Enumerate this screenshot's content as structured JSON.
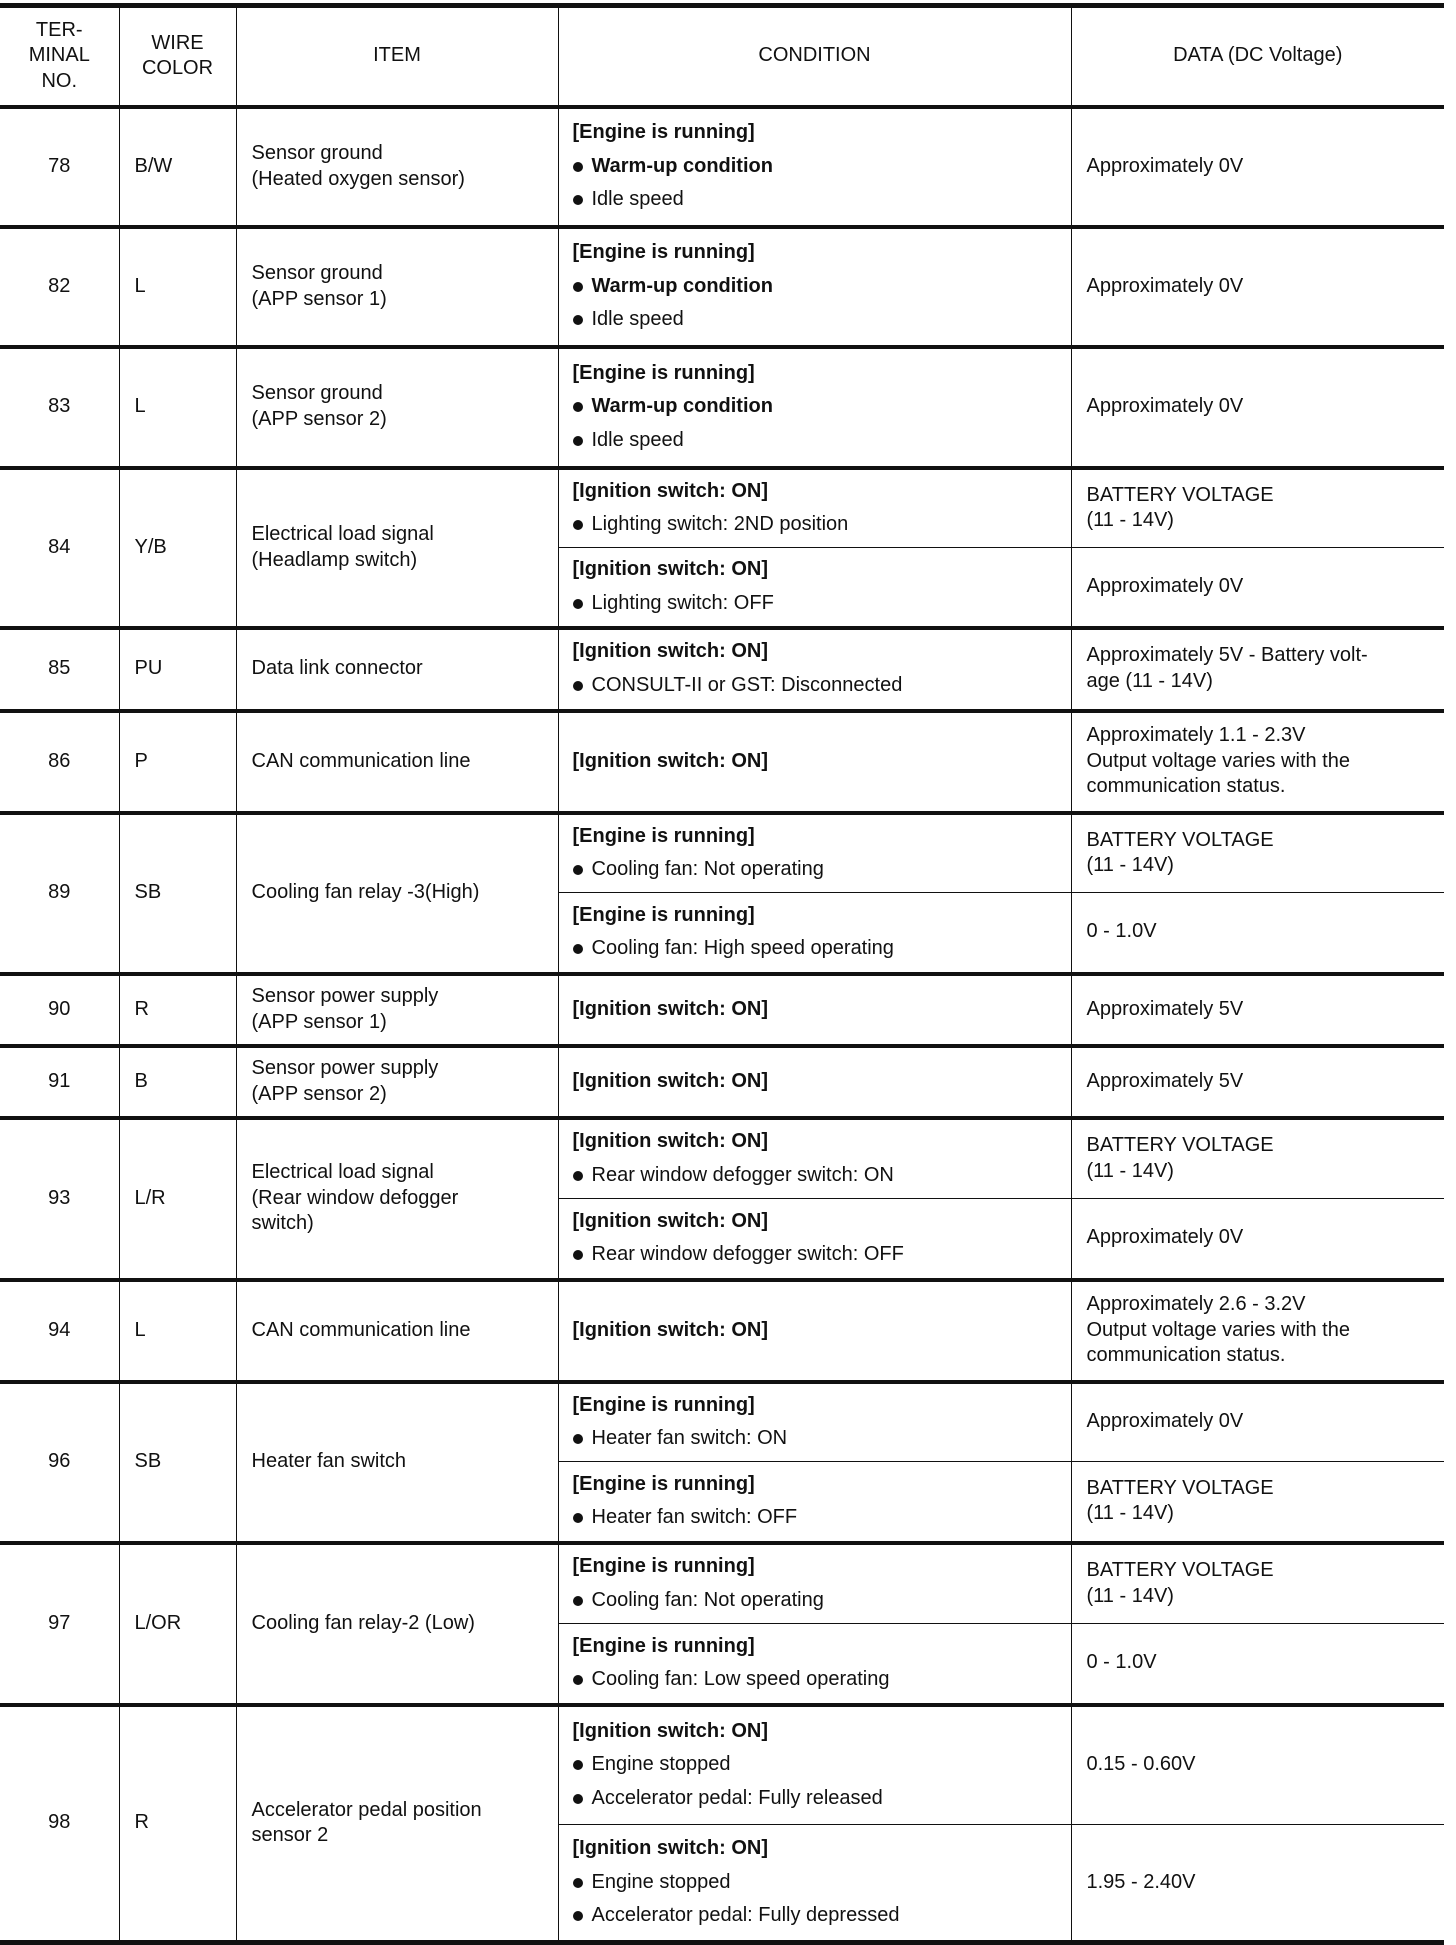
{
  "header": [
    "TER-\nMINAL\nNO.",
    "WIRE\nCOLOR",
    "ITEM",
    "CONDITION",
    "DATA (DC Voltage)"
  ],
  "rows": [
    {
      "terminal": "78",
      "wire": "B/W",
      "item": "Sensor ground\n(Heated oxygen sensor)",
      "conditions": [
        {
          "header": "[Engine is running]",
          "bullets": [
            {
              "text": "Warm-up condition",
              "bold": true
            },
            {
              "text": "Idle speed",
              "bold": false
            }
          ],
          "data": "Approximately 0V"
        }
      ]
    },
    {
      "terminal": "82",
      "wire": "L",
      "item": "Sensor ground\n(APP sensor 1)",
      "conditions": [
        {
          "header": "[Engine is running]",
          "bullets": [
            {
              "text": "Warm-up condition",
              "bold": true
            },
            {
              "text": "Idle speed",
              "bold": false
            }
          ],
          "data": "Approximately 0V"
        }
      ]
    },
    {
      "terminal": "83",
      "wire": "L",
      "item": "Sensor ground\n(APP sensor 2)",
      "conditions": [
        {
          "header": "[Engine is running]",
          "bullets": [
            {
              "text": "Warm-up condition",
              "bold": true
            },
            {
              "text": "Idle speed",
              "bold": false
            }
          ],
          "data": "Approximately 0V"
        }
      ]
    },
    {
      "terminal": "84",
      "wire": "Y/B",
      "item": "Electrical load signal\n(Headlamp switch)",
      "conditions": [
        {
          "header": "[Ignition switch: ON]",
          "bullets": [
            {
              "text": "Lighting switch: 2ND position",
              "bold": false
            }
          ],
          "data": "BATTERY VOLTAGE\n(11 - 14V)"
        },
        {
          "header": "[Ignition switch: ON]",
          "bullets": [
            {
              "text": "Lighting switch: OFF",
              "bold": false
            }
          ],
          "data": "Approximately 0V"
        }
      ]
    },
    {
      "terminal": "85",
      "wire": "PU",
      "item": "Data link connector",
      "conditions": [
        {
          "header": "[Ignition switch: ON]",
          "bullets": [
            {
              "text": "CONSULT-II or GST: Disconnected",
              "bold": false
            }
          ],
          "data": "Approximately 5V - Battery volt-\nage (11 - 14V)"
        }
      ]
    },
    {
      "terminal": "86",
      "wire": "P",
      "item": "CAN communication line",
      "conditions": [
        {
          "header": "[Ignition switch: ON]",
          "bullets": [],
          "data": "Approximately 1.1 - 2.3V\nOutput voltage varies with the\ncommunication status."
        }
      ]
    },
    {
      "terminal": "89",
      "wire": "SB",
      "item": "Cooling fan relay -3(High)",
      "conditions": [
        {
          "header": "[Engine is running]",
          "bullets": [
            {
              "text": "Cooling fan: Not operating",
              "bold": false
            }
          ],
          "data": "BATTERY VOLTAGE\n(11 - 14V)"
        },
        {
          "header": "[Engine is running]",
          "bullets": [
            {
              "text": "Cooling fan: High speed operating",
              "bold": false
            }
          ],
          "data": "0 - 1.0V"
        }
      ]
    },
    {
      "terminal": "90",
      "wire": "R",
      "item": "Sensor power supply\n(APP sensor 1)",
      "conditions": [
        {
          "header": "[Ignition switch: ON]",
          "bullets": [],
          "data": "Approximately 5V"
        }
      ]
    },
    {
      "terminal": "91",
      "wire": "B",
      "item": "Sensor power supply\n(APP sensor 2)",
      "conditions": [
        {
          "header": "[Ignition switch: ON]",
          "bullets": [],
          "data": "Approximately 5V"
        }
      ]
    },
    {
      "terminal": "93",
      "wire": "L/R",
      "item": "Electrical load signal\n(Rear window defogger\nswitch)",
      "conditions": [
        {
          "header": "[Ignition switch: ON]",
          "bullets": [
            {
              "text": "Rear window defogger switch: ON",
              "bold": false
            }
          ],
          "data": "BATTERY VOLTAGE\n(11 - 14V)"
        },
        {
          "header": "[Ignition switch: ON]",
          "bullets": [
            {
              "text": "Rear window defogger switch: OFF",
              "bold": false
            }
          ],
          "data": "Approximately 0V"
        }
      ]
    },
    {
      "terminal": "94",
      "wire": "L",
      "item": "CAN communication line",
      "conditions": [
        {
          "header": "[Ignition switch: ON]",
          "bullets": [],
          "data": "Approximately 2.6 - 3.2V\nOutput voltage varies with the\ncommunication status."
        }
      ]
    },
    {
      "terminal": "96",
      "wire": "SB",
      "item": "Heater fan switch",
      "conditions": [
        {
          "header": "[Engine is running]",
          "bullets": [
            {
              "text": "Heater fan switch: ON",
              "bold": false
            }
          ],
          "data": "Approximately 0V"
        },
        {
          "header": "[Engine is running]",
          "bullets": [
            {
              "text": "Heater fan switch: OFF",
              "bold": false
            }
          ],
          "data": "BATTERY VOLTAGE\n(11 - 14V)"
        }
      ]
    },
    {
      "terminal": "97",
      "wire": "L/OR",
      "item": "Cooling fan relay-2 (Low)",
      "conditions": [
        {
          "header": "[Engine is running]",
          "bullets": [
            {
              "text": "Cooling fan: Not operating",
              "bold": false
            }
          ],
          "data": "BATTERY VOLTAGE\n(11 - 14V)"
        },
        {
          "header": "[Engine is running]",
          "bullets": [
            {
              "text": "Cooling fan: Low speed operating",
              "bold": false
            }
          ],
          "data": "0 - 1.0V"
        }
      ]
    },
    {
      "terminal": "98",
      "wire": "R",
      "item": "Accelerator pedal position\nsensor 2",
      "conditions": [
        {
          "header": "[Ignition switch: ON]",
          "bullets": [
            {
              "text": "Engine stopped",
              "bold": false
            },
            {
              "text": "Accelerator pedal: Fully released",
              "bold": false
            }
          ],
          "data": "0.15 - 0.60V"
        },
        {
          "header": "[Ignition switch: ON]",
          "bullets": [
            {
              "text": "Engine stopped",
              "bold": false
            },
            {
              "text": "Accelerator pedal: Fully depressed",
              "bold": false
            }
          ],
          "data": "1.95 - 2.40V"
        }
      ]
    }
  ]
}
